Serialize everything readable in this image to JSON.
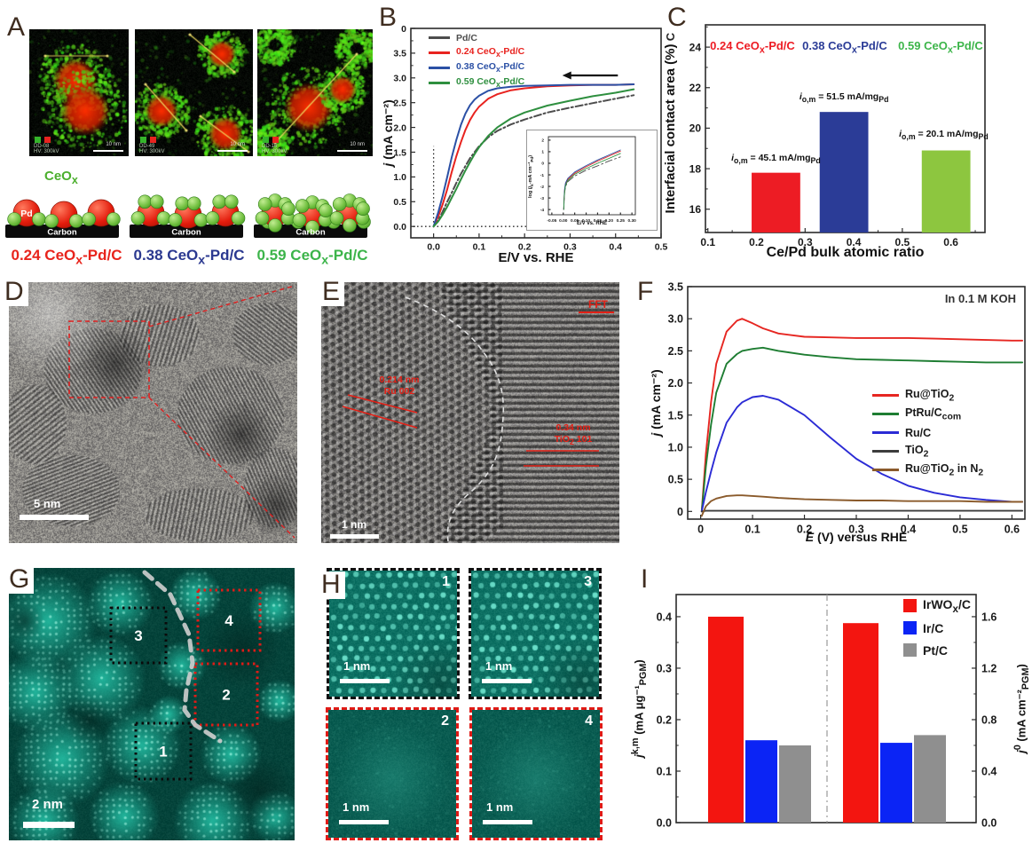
{
  "panels": {
    "A": {
      "letter": "A",
      "tem_images": [
        {
          "tag": "DD-08",
          "hv": "HV: 300kV",
          "scale_label": "10 nm"
        },
        {
          "tag": "DD-49",
          "hv": "HV: 300kV",
          "scale_label": "10 nm"
        },
        {
          "tag": "DD-16",
          "hv": "HV: 300kV",
          "scale_label": "10 nm"
        }
      ],
      "legend_chips": {
        "green": "#35b52b",
        "red": "#e8231f"
      },
      "schematic": {
        "ceox_label_html": "CeO<sub>x</sub>",
        "pd_label": "Pd",
        "carbon_label": "Carbon",
        "green_satellites_per_unit": [
          2,
          4,
          7
        ]
      },
      "captions": [
        {
          "html": "0.24 CeO<sub>x</sub>-Pd/C",
          "color": "#e8241c"
        },
        {
          "html": "0.38 CeO<sub>x</sub>-Pd/C",
          "color": "#2b3990"
        },
        {
          "html": "0.59 CeO<sub>x</sub>-Pd/C",
          "color": "#3cb44a"
        }
      ]
    },
    "B": {
      "letter": "B"
    },
    "C": {
      "letter": "C",
      "stray_glyph": "C"
    },
    "D": {
      "letter": "D",
      "scale_label": "5 nm"
    },
    "E": {
      "letter": "E",
      "scale_label": "1 nm",
      "fft_label": "FFT",
      "lattice_annotations": [
        {
          "d_html": "0.214 nm",
          "plane_html": "Ru 002"
        },
        {
          "d_html": "0.34 nm",
          "plane_html": "TiO<sub>2</sub> 101"
        }
      ]
    },
    "F": {
      "letter": "F",
      "note": "In 0.1 M KOH"
    },
    "G": {
      "letter": "G",
      "scale_label": "2 nm",
      "boxes": [
        {
          "n": "3",
          "color": "black"
        },
        {
          "n": "4",
          "color": "red"
        },
        {
          "n": "2",
          "color": "red"
        },
        {
          "n": "1",
          "color": "black"
        }
      ]
    },
    "H": {
      "letter": "H",
      "scale_label": "1 nm",
      "tiles": [
        {
          "n": "1",
          "border": "black",
          "bright": true
        },
        {
          "n": "3",
          "border": "black",
          "bright": true
        },
        {
          "n": "2",
          "border": "red",
          "bright": false
        },
        {
          "n": "4",
          "border": "red",
          "bright": false
        }
      ]
    },
    "I": {
      "letter": "I"
    }
  },
  "chart_data": [
    {
      "id": "B",
      "type": "line",
      "xlabel": "E/V vs. RHE",
      "ylabel_html": "<i>j</i> (mA cm⁻²)",
      "xlim": [
        -0.05,
        0.5
      ],
      "ylim": [
        -0.23,
        4.0
      ],
      "xticks": [
        0,
        0.1,
        0.2,
        0.3,
        0.4,
        0.5
      ],
      "xtick_labels": [
        "0.0",
        "0.1",
        "0.2",
        "0.3",
        "0.4",
        "0.5"
      ],
      "yticks": [
        0,
        0.5,
        1,
        1.5,
        2,
        2.5,
        3,
        3.5,
        4
      ],
      "ytick_labels": [
        "0.0",
        "0.5",
        "1.0",
        "1.5",
        "2.0",
        "2.5",
        "3.0",
        "3.5",
        "4.0"
      ],
      "grid": false,
      "legend_position": "top-left",
      "series": [
        {
          "name": "Pd/C",
          "label_html": "Pd/C",
          "color": "#4d4d4d",
          "dash": "dashdot",
          "x": [
            0,
            0.01,
            0.02,
            0.03,
            0.04,
            0.05,
            0.06,
            0.07,
            0.08,
            0.09,
            0.1,
            0.12,
            0.14,
            0.17,
            0.2,
            0.25,
            0.3,
            0.35,
            0.4,
            0.44
          ],
          "y": [
            0,
            0.12,
            0.3,
            0.5,
            0.68,
            0.88,
            1.06,
            1.22,
            1.38,
            1.5,
            1.62,
            1.8,
            1.93,
            2.06,
            2.16,
            2.3,
            2.4,
            2.49,
            2.58,
            2.65
          ]
        },
        {
          "name": "0.24 CeOx-Pd/C",
          "label_html": "0.24 CeO<sub>x</sub>-Pd/C",
          "color": "#e8231f",
          "dash": "solid",
          "x": [
            0,
            0.01,
            0.02,
            0.03,
            0.04,
            0.05,
            0.06,
            0.07,
            0.08,
            0.09,
            0.1,
            0.12,
            0.14,
            0.17,
            0.2,
            0.25,
            0.3,
            0.35,
            0.4,
            0.44
          ],
          "y": [
            0,
            0.2,
            0.45,
            0.75,
            1.1,
            1.42,
            1.7,
            1.95,
            2.15,
            2.3,
            2.42,
            2.58,
            2.67,
            2.75,
            2.79,
            2.83,
            2.85,
            2.86,
            2.86,
            2.87
          ]
        },
        {
          "name": "0.38 CeOx-Pd/C",
          "label_html": "0.38 CeO<sub>x</sub>-Pd/C",
          "color": "#2b50a5",
          "dash": "solid",
          "x": [
            0,
            0.01,
            0.02,
            0.03,
            0.04,
            0.05,
            0.06,
            0.07,
            0.08,
            0.09,
            0.1,
            0.12,
            0.14,
            0.17,
            0.2,
            0.25,
            0.3,
            0.35,
            0.4,
            0.44
          ],
          "y": [
            0,
            0.28,
            0.62,
            1.0,
            1.4,
            1.75,
            2.05,
            2.28,
            2.45,
            2.56,
            2.64,
            2.74,
            2.79,
            2.82,
            2.84,
            2.85,
            2.86,
            2.86,
            2.86,
            2.87
          ]
        },
        {
          "name": "0.59 CeOx-Pd/C",
          "label_html": "0.59 CeO<sub>x</sub>-Pd/C",
          "color": "#2e8f3f",
          "dash": "solid",
          "x": [
            0,
            0.01,
            0.02,
            0.03,
            0.04,
            0.05,
            0.06,
            0.07,
            0.08,
            0.09,
            0.1,
            0.12,
            0.14,
            0.17,
            0.2,
            0.25,
            0.3,
            0.35,
            0.4,
            0.44
          ],
          "y": [
            0,
            0.1,
            0.24,
            0.4,
            0.58,
            0.76,
            0.95,
            1.13,
            1.3,
            1.46,
            1.6,
            1.83,
            2.0,
            2.18,
            2.3,
            2.44,
            2.54,
            2.63,
            2.7,
            2.77
          ]
        }
      ],
      "guides": {
        "vline": {
          "x": 0,
          "y0": 0,
          "y1": 1.62
        },
        "hline": {
          "y": 0,
          "x0": -0.045,
          "x1": 0.283
        }
      },
      "arrow": {
        "y": 3.05,
        "x_tail": 0.405,
        "x_tip": 0.283
      }
    },
    {
      "id": "B_inset",
      "type": "line",
      "xlabel": "E/V vs. RHE",
      "ylabel_html": "log (<i>j</i><sub>k</sub>-mA cm⁻²<sub>Pd</sub>)",
      "xlim": [
        -0.065,
        0.315
      ],
      "ylim": [
        -4.45,
        2.3
      ],
      "xticks": [
        -0.05,
        0,
        0.05,
        0.1,
        0.15,
        0.2,
        0.25,
        0.3
      ],
      "xtick_labels": [
        "-0.05",
        "0.00",
        "0.05",
        "0.10",
        "0.15",
        "0.20",
        "0.25",
        "0.30"
      ],
      "yticks": [
        -4,
        -3,
        -2,
        -1,
        0,
        1,
        2
      ],
      "ytick_labels": [
        "-4",
        "-3",
        "-2",
        "-1",
        "0",
        "1",
        "2"
      ],
      "series": [
        {
          "name": "Pd/C",
          "color": "#4d4d4d",
          "dash": "dashdot",
          "x": [
            0.002,
            0.004,
            0.006,
            0.01,
            0.02,
            0.05,
            0.1,
            0.15,
            0.2,
            0.25
          ],
          "y": [
            -4,
            -3.1,
            -2.55,
            -2.0,
            -1.6,
            -1.1,
            -0.6,
            -0.22,
            0.2,
            0.55
          ]
        },
        {
          "name": "0.24 CeOx-Pd/C",
          "color": "#e8231f",
          "dash": "solid",
          "x": [
            0.002,
            0.004,
            0.006,
            0.01,
            0.02,
            0.05,
            0.1,
            0.15,
            0.2,
            0.25
          ],
          "y": [
            -4,
            -2.9,
            -2.3,
            -1.8,
            -1.4,
            -0.85,
            -0.3,
            0.18,
            0.62,
            1.05
          ]
        },
        {
          "name": "0.38 CeOx-Pd/C",
          "color": "#2b50a5",
          "dash": "solid",
          "x": [
            0.002,
            0.004,
            0.006,
            0.01,
            0.02,
            0.05,
            0.1,
            0.15,
            0.2,
            0.25
          ],
          "y": [
            -4,
            -2.8,
            -2.2,
            -1.7,
            -1.3,
            -0.75,
            -0.2,
            0.28,
            0.72,
            1.15
          ]
        },
        {
          "name": "0.59 CeOx-Pd/C",
          "color": "#2e8f3f",
          "dash": "solid",
          "x": [
            0.002,
            0.004,
            0.006,
            0.01,
            0.02,
            0.05,
            0.1,
            0.15,
            0.2,
            0.25
          ],
          "y": [
            -4,
            -3.0,
            -2.45,
            -1.9,
            -1.5,
            -0.95,
            -0.45,
            0.0,
            0.42,
            0.85
          ]
        }
      ]
    },
    {
      "id": "C",
      "type": "bar",
      "xlabel": "Ce/Pd bulk atomic ratio",
      "ylabel": "Interfacial contact area (%)",
      "xlim": [
        0.095,
        0.67
      ],
      "ylim": [
        14.85,
        25.1
      ],
      "xticks": [
        0.1,
        0.2,
        0.3,
        0.4,
        0.5,
        0.6
      ],
      "xtick_labels": [
        "0.1",
        "0.2",
        "0.3",
        "0.4",
        "0.5",
        "0.6"
      ],
      "yticks": [
        16,
        18,
        20,
        22,
        24
      ],
      "ytick_labels": [
        "16",
        "18",
        "20",
        "22",
        "24"
      ],
      "bar_width": 0.1,
      "categories": [
        "0.24 CeOx-Pd/C",
        "0.38 CeOx-Pd/C",
        "0.59 CeOx-Pd/C"
      ],
      "x_centers": [
        0.24,
        0.38,
        0.59
      ],
      "values": [
        17.8,
        20.8,
        18.9
      ],
      "bar_colors": [
        "#ed1c24",
        "#2b3c97",
        "#8dc63f"
      ],
      "header_labels": [
        {
          "html": "0.24 CeO<sub>x</sub>-Pd/C",
          "color": "#ed1c24"
        },
        {
          "html": "0.38 CeO<sub>x</sub>-Pd/C",
          "color": "#2b3c97"
        },
        {
          "html": "0.59 CeO<sub>x</sub>-Pd/C",
          "color": "#3db54a"
        }
      ],
      "annotations": [
        {
          "x": 0.24,
          "y": 18.2,
          "html": "<i>i</i><sub>o,m</sub> = 45.1 mA/mg<sub>Pd</sub>"
        },
        {
          "x": 0.38,
          "y": 21.2,
          "html": "<i>i</i><sub>o,m</sub> = 51.5 mA/mg<sub>Pd</sub>"
        },
        {
          "x": 0.585,
          "y": 19.35,
          "html": "<i>i</i><sub>o,m</sub> = 20.1 mA/mg<sub>Pd</sub>"
        }
      ]
    },
    {
      "id": "F",
      "type": "line",
      "note": "In 0.1 M KOH",
      "xlabel_html": "<i>E</i> (V) versus RHE",
      "ylabel_html": "<i>j</i> (mA cm⁻²)",
      "xlim": [
        -0.025,
        0.625
      ],
      "ylim": [
        -0.12,
        3.5
      ],
      "xticks": [
        0,
        0.1,
        0.2,
        0.3,
        0.4,
        0.5,
        0.6
      ],
      "xtick_labels": [
        "0",
        "0.1",
        "0.2",
        "0.3",
        "0.4",
        "0.5",
        "0.6"
      ],
      "yticks": [
        0,
        0.5,
        1,
        1.5,
        2,
        2.5,
        3,
        3.5
      ],
      "ytick_labels": [
        "0",
        "0.5",
        "1.0",
        "1.5",
        "2.0",
        "2.5",
        "3.0",
        "3.5"
      ],
      "legend_position": "right-middle",
      "series": [
        {
          "name": "Ru@TiO2",
          "label_html": "Ru@TiO<sub>2</sub>",
          "color": "#e62621",
          "dash": "solid",
          "x": [
            0.002,
            0.01,
            0.02,
            0.03,
            0.05,
            0.07,
            0.08,
            0.1,
            0.12,
            0.15,
            0.2,
            0.25,
            0.3,
            0.35,
            0.4,
            0.45,
            0.5,
            0.55,
            0.6,
            0.62
          ],
          "y": [
            0,
            0.9,
            1.7,
            2.3,
            2.8,
            2.97,
            3.0,
            2.93,
            2.85,
            2.77,
            2.72,
            2.71,
            2.7,
            2.7,
            2.7,
            2.69,
            2.68,
            2.67,
            2.66,
            2.66
          ]
        },
        {
          "name": "PtRu/Ccom",
          "label_html": "PtRu/C<sub>com</sub>",
          "color": "#1e7d32",
          "dash": "solid",
          "x": [
            0.002,
            0.01,
            0.02,
            0.03,
            0.05,
            0.07,
            0.08,
            0.1,
            0.12,
            0.15,
            0.2,
            0.25,
            0.3,
            0.35,
            0.4,
            0.45,
            0.5,
            0.55,
            0.6,
            0.62
          ],
          "y": [
            0,
            0.7,
            1.35,
            1.85,
            2.3,
            2.45,
            2.5,
            2.53,
            2.55,
            2.5,
            2.44,
            2.4,
            2.37,
            2.36,
            2.35,
            2.34,
            2.33,
            2.32,
            2.32,
            2.32
          ]
        },
        {
          "name": "Ru/C",
          "label_html": "Ru/C",
          "color": "#2b2bd5",
          "dash": "solid",
          "x": [
            0.002,
            0.01,
            0.02,
            0.03,
            0.05,
            0.07,
            0.08,
            0.1,
            0.12,
            0.15,
            0.2,
            0.25,
            0.3,
            0.35,
            0.4,
            0.45,
            0.5,
            0.55,
            0.6,
            0.62
          ],
          "y": [
            0,
            0.3,
            0.62,
            0.92,
            1.38,
            1.62,
            1.7,
            1.78,
            1.8,
            1.74,
            1.5,
            1.15,
            0.82,
            0.58,
            0.4,
            0.29,
            0.22,
            0.18,
            0.15,
            0.15
          ]
        },
        {
          "name": "TiO2",
          "label_html": "TiO<sub>2</sub>",
          "color": "#3c3c3c",
          "dash": "solid",
          "x": [
            0.002,
            0.01,
            0.02,
            0.03,
            0.05,
            0.07,
            0.08,
            0.1,
            0.12,
            0.15,
            0.2,
            0.25,
            0.3,
            0.35,
            0.4,
            0.45,
            0.5,
            0.55,
            0.6,
            0.62
          ],
          "y": [
            0,
            0.01,
            0.01,
            0.01,
            0.01,
            0.01,
            0.01,
            0.01,
            0.01,
            0.01,
            0.01,
            0.01,
            0.01,
            0.01,
            0.01,
            0.01,
            0.01,
            0.01,
            0.01,
            0.01
          ]
        },
        {
          "name": "Ru@TiO2 in N2",
          "label_html": "Ru@TiO<sub>2</sub> in N<sub>2</sub>",
          "color": "#8a5a2b",
          "dash": "solid",
          "x": [
            0.002,
            0.01,
            0.02,
            0.03,
            0.05,
            0.07,
            0.08,
            0.1,
            0.12,
            0.15,
            0.2,
            0.25,
            0.3,
            0.35,
            0.4,
            0.45,
            0.5,
            0.55,
            0.6,
            0.62
          ],
          "y": [
            -0.07,
            0.08,
            0.16,
            0.2,
            0.24,
            0.25,
            0.25,
            0.24,
            0.23,
            0.21,
            0.19,
            0.18,
            0.17,
            0.17,
            0.16,
            0.16,
            0.16,
            0.15,
            0.15,
            0.15
          ]
        }
      ]
    },
    {
      "id": "I",
      "type": "bar",
      "series": [
        {
          "name": "IrWOx/C",
          "label_html": "IrWO<sub>x</sub>/C",
          "color": "#f31510"
        },
        {
          "name": "Ir/C",
          "label_html": "Ir/C",
          "color": "#0b24f5"
        },
        {
          "name": "Pt/C",
          "label_html": "Pt/C",
          "color": "#8f8f8f"
        }
      ],
      "groups": [
        {
          "axis": "left",
          "ylabel_html": "<i>j</i><sup>k,m</sup> (mA μg⁻¹<sub>PGM</sub>)",
          "values": [
            0.4,
            0.16,
            0.15
          ]
        },
        {
          "axis": "right",
          "ylabel_html": "<i>j</i><sup>0</sup> (mA cm⁻²<sub>PGM</sub>)",
          "values": [
            1.55,
            0.62,
            0.68
          ]
        }
      ],
      "ylim_left": [
        0,
        0.443
      ],
      "yticks_left": [
        0,
        0.1,
        0.2,
        0.3,
        0.4
      ],
      "ytick_labels_left": [
        "0.0",
        "0.1",
        "0.2",
        "0.3",
        "0.4"
      ],
      "ylim_right": [
        0,
        1.772
      ],
      "yticks_right": [
        0,
        0.4,
        0.8,
        1.2,
        1.6
      ],
      "ytick_labels_right": [
        "0.0",
        "0.4",
        "0.8",
        "1.2",
        "1.6"
      ],
      "divider": true,
      "legend_position": "top-right"
    }
  ]
}
